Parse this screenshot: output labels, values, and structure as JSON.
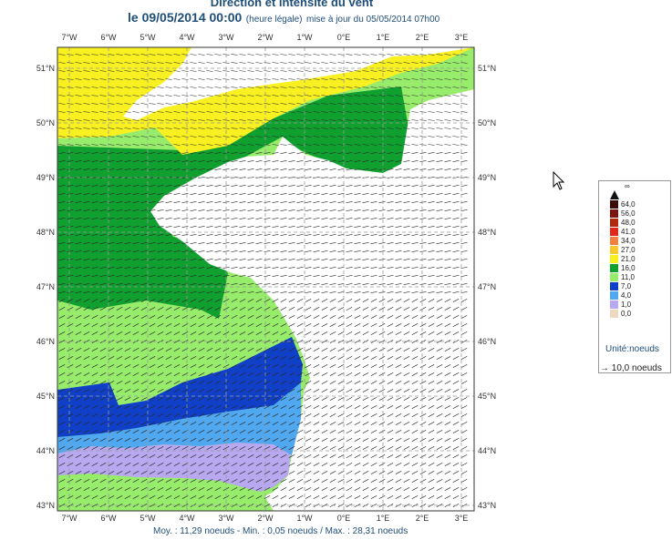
{
  "header": {
    "title": "Direction et intensité du vent",
    "date": "le 09/05/2014 00:00",
    "time_note": "(heure légale)",
    "update_note": "mise à jour du 05/05/2014 07h00"
  },
  "map": {
    "lon_ticks": [
      "7°W",
      "6°W",
      "5°W",
      "4°W",
      "3°W",
      "2°W",
      "1°W",
      "0°E",
      "1°E",
      "2°E",
      "3°E"
    ],
    "lat_ticks": [
      "51°N",
      "50°N",
      "49°N",
      "48°N",
      "47°N",
      "46°N",
      "45°N",
      "44°N",
      "43°N"
    ],
    "grid": true,
    "arrow_icon": "wind-arrow-icon"
  },
  "legend": {
    "top_label": "∞",
    "classes": [
      {
        "label": "64,0",
        "color": "#3b0a0a"
      },
      {
        "label": "56,0",
        "color": "#7a1410"
      },
      {
        "label": "48,0",
        "color": "#b02a12"
      },
      {
        "label": "41,0",
        "color": "#e02818"
      },
      {
        "label": "34,0",
        "color": "#f08040"
      },
      {
        "label": "27,0",
        "color": "#f8c830"
      },
      {
        "label": "21,0",
        "color": "#f8f020"
      },
      {
        "label": "16,0",
        "color": "#10a030"
      },
      {
        "label": "11,0",
        "color": "#98ec6c"
      },
      {
        "label": "7,0",
        "color": "#1040c8"
      },
      {
        "label": "4,0",
        "color": "#50a8f0"
      },
      {
        "label": "1,0",
        "color": "#b8a8f0"
      },
      {
        "label": "0,0",
        "color": "#f0d8c0"
      }
    ],
    "unit": "Unité:noeuds",
    "arrow_ref": "→ 10,0 noeuds"
  },
  "stats": {
    "text": "Moy. : 11,29 noeuds  -  Min. : 0,05 noeuds / Max. : 28,31 noeuds"
  },
  "colors": {
    "land": "#ffffff",
    "calm": "#b8a8f0",
    "light_blue": "#50a8f0",
    "blue": "#1040c8",
    "light_green": "#98ec6c",
    "green": "#10a030",
    "yellow": "#f8f020"
  }
}
